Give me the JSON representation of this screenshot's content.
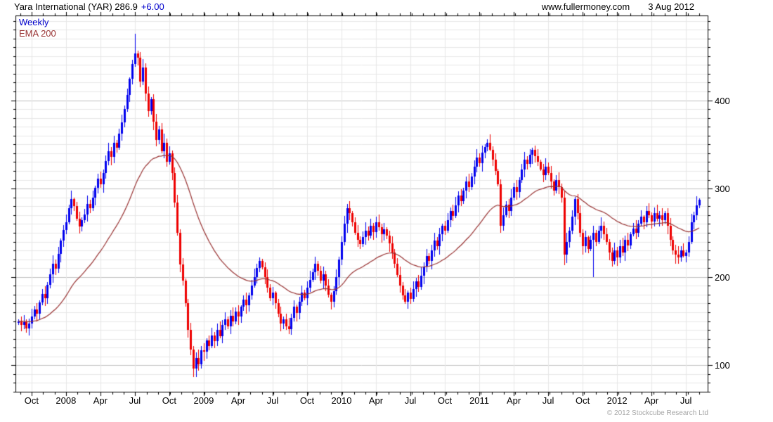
{
  "header": {
    "title": "Yara International (YAR) 286.9",
    "change": "+6.00",
    "website": "www.fullermoney.com",
    "date": "3 Aug 2012"
  },
  "legend": {
    "timeframe": "Weekly",
    "overlay": "EMA 200"
  },
  "footer": {
    "copyright": "© 2012 Stockcube Research Ltd"
  },
  "colors": {
    "up": "#0000ee",
    "down": "#ee0000",
    "ema": "#993333",
    "grid_minor": "#e7e7e7",
    "grid_major": "#c2c2c2",
    "axis": "#000000",
    "accent_blue": "#0000cc",
    "copyright_gray": "#a6a6a6"
  },
  "chart_data": {
    "type": "candlestick",
    "title": "Yara International (YAR) weekly candlestick chart with 200-day EMA",
    "timeframe": "weekly",
    "last_close": 286.9,
    "last_change": 6.0,
    "ylim": [
      70,
      496
    ],
    "y_grid_step": 10,
    "y_major_step": 100,
    "y_tick_labels": [
      400,
      300,
      200,
      100
    ],
    "minor_x_tick_weeks": 4.345,
    "x_labels": [
      {
        "label": "Oct",
        "week": 5
      },
      {
        "label": "2008",
        "week": 18
      },
      {
        "label": "Apr",
        "week": 31
      },
      {
        "label": "Jul",
        "week": 44
      },
      {
        "label": "Oct",
        "week": 57
      },
      {
        "label": "2009",
        "week": 70
      },
      {
        "label": "Apr",
        "week": 83
      },
      {
        "label": "Jul",
        "week": 96
      },
      {
        "label": "Oct",
        "week": 109
      },
      {
        "label": "2010",
        "week": 122
      },
      {
        "label": "Apr",
        "week": 135
      },
      {
        "label": "Jul",
        "week": 148
      },
      {
        "label": "Oct",
        "week": 161
      },
      {
        "label": "2011",
        "week": 174
      },
      {
        "label": "Apr",
        "week": 187
      },
      {
        "label": "Jul",
        "week": 200
      },
      {
        "label": "Oct",
        "week": 213
      },
      {
        "label": "2012",
        "week": 226
      },
      {
        "label": "Apr",
        "week": 239
      },
      {
        "label": "Jul",
        "week": 252
      }
    ],
    "closes": [
      150,
      146,
      149,
      142,
      147,
      155,
      163,
      158,
      171,
      181,
      176,
      191,
      203,
      215,
      209,
      226,
      241,
      253,
      262,
      278,
      288,
      280,
      266,
      257,
      264,
      271,
      283,
      278,
      290,
      301,
      311,
      305,
      318,
      331,
      342,
      336,
      352,
      346,
      362,
      375,
      390,
      406,
      424,
      441,
      453,
      448,
      421,
      437,
      408,
      388,
      401,
      376,
      355,
      367,
      342,
      352,
      330,
      340,
      318,
      284,
      250,
      214,
      196,
      170,
      140,
      118,
      96,
      108,
      101,
      117,
      115,
      128,
      122,
      134,
      127,
      140,
      133,
      146,
      152,
      144,
      156,
      150,
      161,
      155,
      166,
      174,
      168,
      179,
      190,
      200,
      210,
      218,
      211,
      200,
      188,
      176,
      182,
      170,
      158,
      147,
      152,
      144,
      141,
      154,
      166,
      159,
      172,
      182,
      176,
      188,
      197,
      205,
      215,
      207,
      196,
      203,
      190,
      180,
      172,
      184,
      200,
      220,
      240,
      260,
      278,
      272,
      262,
      250,
      242,
      237,
      245,
      252,
      247,
      258,
      251,
      262,
      256,
      248,
      254,
      247,
      238,
      228,
      215,
      202,
      190,
      179,
      172,
      182,
      175,
      186,
      195,
      189,
      201,
      212,
      224,
      218,
      230,
      241,
      235,
      248,
      258,
      252,
      264,
      275,
      269,
      281,
      292,
      286,
      298,
      308,
      302,
      314,
      325,
      335,
      329,
      341,
      347,
      352,
      344,
      333,
      320,
      305,
      258,
      270,
      282,
      275,
      290,
      302,
      296,
      310,
      322,
      333,
      328,
      338,
      344,
      337,
      330,
      322,
      315,
      325,
      318,
      308,
      298,
      310,
      302,
      290,
      225,
      240,
      252,
      268,
      288,
      272,
      250,
      235,
      245,
      232,
      242,
      250,
      240,
      252,
      258,
      248,
      240,
      228,
      218,
      230,
      222,
      235,
      228,
      242,
      236,
      248,
      255,
      250,
      260,
      268,
      262,
      275,
      270,
      263,
      272,
      266,
      270,
      264,
      272,
      258,
      242,
      230,
      225,
      222,
      230,
      224,
      228,
      240,
      262,
      270,
      281,
      287
    ],
    "special_highs": {
      "20": 298,
      "44": 475,
      "91": 222,
      "124": 283,
      "177": 356,
      "256": 291
    },
    "special_lows": {
      "3": 137,
      "66": 87,
      "102": 135,
      "206": 213,
      "217": 200,
      "249": 215
    },
    "ema_period_weeks": 40,
    "ema_seed": 150
  }
}
